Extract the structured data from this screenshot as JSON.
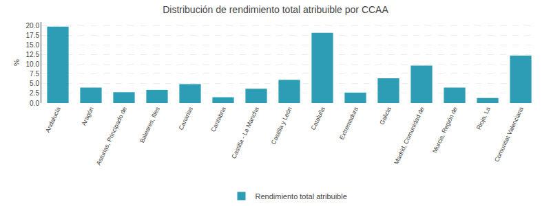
{
  "chart_data": {
    "type": "bar",
    "title": "Distribución de rendimiento total atribuible por CCAA",
    "categories": [
      "Andalucía",
      "Aragón",
      "Asturias, Principado de",
      "Baleares, Illes",
      "Canarias",
      "Cantabria",
      "Castilla - La Mancha",
      "Castilla y León",
      "Cataluña",
      "Extremadura",
      "Galicia",
      "Madrid, Comunidad de",
      "Murcia, Región de",
      "Rioja, La",
      "Comunitat Valenciana"
    ],
    "series": [
      {
        "name": "Rendimiento total atribuible",
        "color": "#2d9db5",
        "values": [
          19.8,
          4.0,
          2.8,
          3.4,
          4.9,
          1.5,
          3.7,
          6.0,
          18.2,
          2.7,
          6.4,
          9.7,
          4.0,
          1.3,
          12.3
        ]
      }
    ],
    "ylabel": "%",
    "ylim": [
      0,
      21.0
    ],
    "yticks": [
      {
        "value": 0.0,
        "label": "0.0"
      },
      2.5,
      {
        "value": 5.0,
        "label": "5.0"
      },
      7.5,
      {
        "value": 10.0,
        "label": "10.0"
      },
      12.5,
      {
        "value": 15.0,
        "label": "15.0"
      },
      17.5,
      {
        "value": 20.0,
        "label": "20.0"
      }
    ],
    "grid": true,
    "legend": "bottom"
  }
}
